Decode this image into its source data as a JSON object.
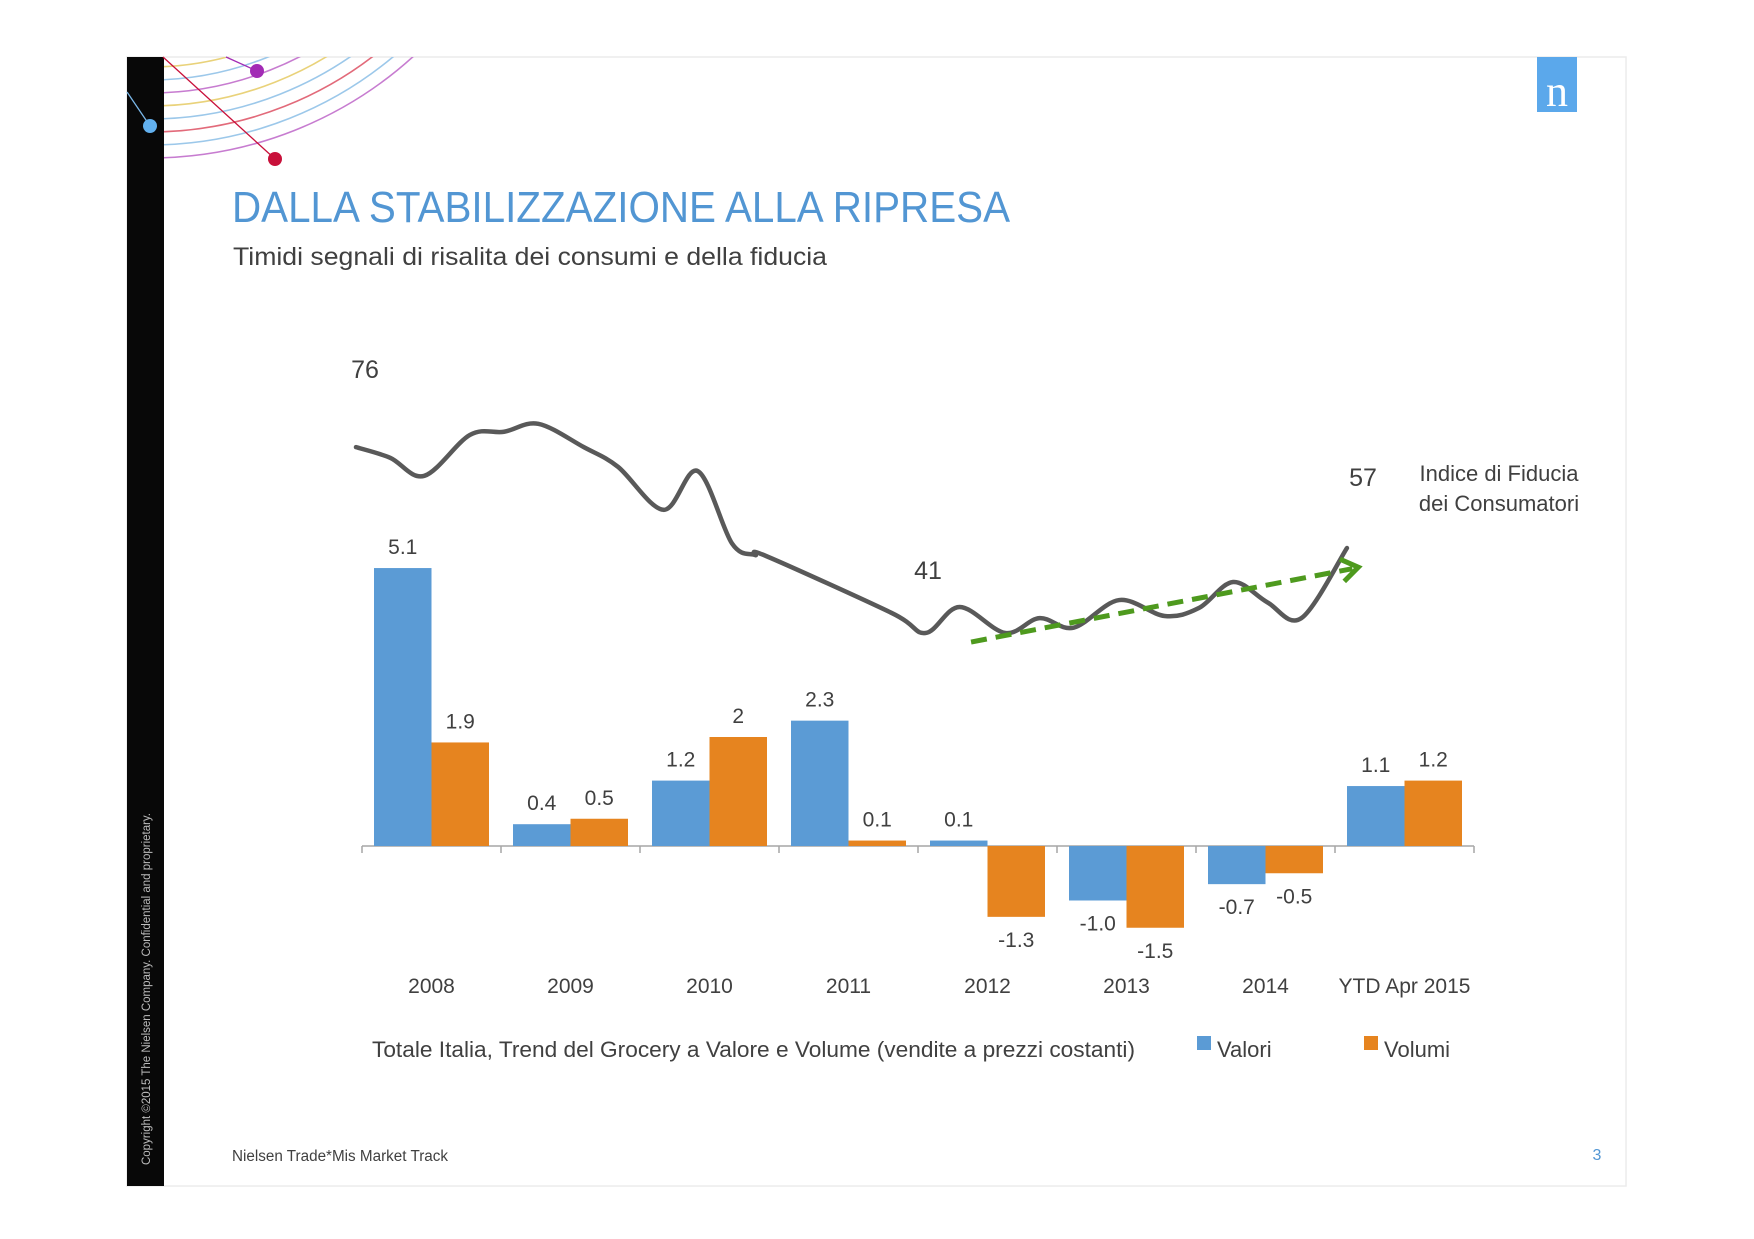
{
  "slide": {
    "title": "DALLA STABILIZZAZIONE ALLA RIPRESA",
    "subtitle": "Timidi segnali di risalita dei consumi e della fiducia",
    "source": "Nielsen Trade*Mis Market Track",
    "page_number": "3",
    "copyright": "Copyright ©2015 The Nielsen Company. Confidential and proprietary.",
    "logo_letter": "n",
    "logo_icon": "nielsen-logo",
    "colors": {
      "title": "#5296D3",
      "logo": "#5BA8EB",
      "side_bar": "#080808",
      "text": "#404040"
    }
  },
  "chart_data": [
    {
      "type": "bar",
      "categories": [
        "2008",
        "2009",
        "2010",
        "2011",
        "2012",
        "2013",
        "2014",
        "YTD Apr 2015"
      ],
      "series": [
        {
          "name": "Valori",
          "color": "#5B9BD5",
          "values": [
            5.1,
            0.4,
            1.2,
            2.3,
            0.1,
            -1.0,
            -0.7,
            1.1
          ],
          "labels": [
            "5.1",
            "0.4",
            "1.2",
            "2.3",
            "0.1",
            "-1.0",
            "-0.7",
            "1.1"
          ]
        },
        {
          "name": "Volumi",
          "color": "#E6841F",
          "values": [
            1.9,
            0.5,
            2,
            0.1,
            -1.3,
            -1.5,
            -0.5,
            1.2
          ],
          "labels": [
            "1.9",
            "0.5",
            "2",
            "0.1",
            "-1.3",
            "-1.5",
            "-0.5",
            "1.2"
          ]
        }
      ],
      "caption": "Totale Italia, Trend del Grocery a Valore e Volume (vendite a prezzi costanti)",
      "legend": "bottom-right",
      "grid": false
    },
    {
      "type": "line",
      "name": "Indice di Fiducia dei Consumatori",
      "name_lines": [
        "Indice di Fiducia",
        "dei Consumatori"
      ],
      "color": "#595959",
      "x": [
        "2008-01",
        "2008-04",
        "2008-07",
        "2008-11",
        "2009-02",
        "2009-05",
        "2009-09",
        "2009-12",
        "2010-04",
        "2010-07",
        "2010-10",
        "2010-12",
        "2011-01",
        "2011-12",
        "2012-03",
        "2012-06",
        "2012-10",
        "2013-01",
        "2013-04",
        "2013-08",
        "2013-12",
        "2014-03",
        "2014-06",
        "2014-09",
        "2014-12",
        "2015-04"
      ],
      "y": [
        76,
        74,
        70.6,
        78.3,
        78.9,
        80.4,
        76,
        72.3,
        64.2,
        71.5,
        57.9,
        55.7,
        55.5,
        44.8,
        41,
        45.9,
        41,
        43.8,
        42,
        47.2,
        44.2,
        45.7,
        50.6,
        46.8,
        43.8,
        57
      ],
      "annotations": [
        {
          "text": "76",
          "x": "2008-01",
          "y": 76
        },
        {
          "text": "41",
          "x": "2012-03",
          "y": 41
        },
        {
          "text": "57",
          "x": "2015-04",
          "y": 57
        }
      ],
      "trend_arrow": {
        "color": "#4E9A1E",
        "style": "dashed",
        "from": {
          "x": "2012-07",
          "y": 39.3
        },
        "to": {
          "x": "2015-05",
          "y": 53.4
        }
      }
    }
  ]
}
